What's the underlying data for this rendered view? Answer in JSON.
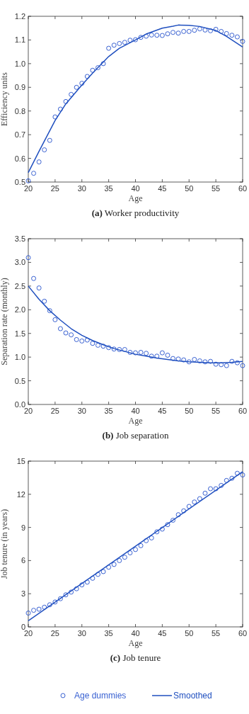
{
  "chart_data": [
    {
      "type": "scatter",
      "title": "(a) Worker productivity",
      "xlabel": "Age",
      "ylabel": "Efficiency units",
      "xlim": [
        20,
        60
      ],
      "xticks": [
        20,
        25,
        30,
        35,
        40,
        45,
        50,
        55,
        60
      ],
      "ylim": [
        0.5,
        1.2
      ],
      "yticks": [
        {
          "value": 0.5,
          "label": "0.5"
        },
        {
          "value": 0.6,
          "label": "0.6"
        },
        {
          "value": 0.7,
          "label": "0.7"
        },
        {
          "value": 0.8,
          "label": "0.8"
        },
        {
          "value": 0.9,
          "label": "0.9"
        },
        {
          "value": 1,
          "label": "1.0"
        },
        {
          "value": 1.1,
          "label": "1.1"
        },
        {
          "value": 1.2,
          "label": "1.2"
        }
      ],
      "grid": false,
      "series": [
        {
          "type": "scatter",
          "marker": "circle",
          "color": "#3a62d2",
          "x": [
            20,
            21,
            22,
            23,
            24,
            25,
            26,
            27,
            28,
            29,
            30,
            31,
            32,
            33,
            34,
            35,
            36,
            37,
            38,
            39,
            40,
            41,
            42,
            43,
            44,
            45,
            46,
            47,
            48,
            49,
            50,
            51,
            52,
            53,
            54,
            55,
            56,
            57,
            58,
            59,
            60
          ],
          "values": [
            0.505,
            0.537,
            0.585,
            0.636,
            0.676,
            0.775,
            0.808,
            0.84,
            0.87,
            0.9,
            0.917,
            0.946,
            0.972,
            0.983,
            1.0,
            1.065,
            1.078,
            1.085,
            1.09,
            1.099,
            1.101,
            1.111,
            1.116,
            1.121,
            1.12,
            1.119,
            1.126,
            1.132,
            1.129,
            1.136,
            1.136,
            1.141,
            1.147,
            1.142,
            1.139,
            1.145,
            1.136,
            1.127,
            1.12,
            1.113,
            1.094
          ]
        },
        {
          "type": "line",
          "marker": "none",
          "line_style": "solid",
          "color": "#1f4fbf",
          "x": [
            20,
            22,
            25,
            27,
            30,
            32,
            35,
            37,
            40,
            42,
            45,
            47,
            48,
            50,
            52,
            55,
            57,
            60
          ],
          "values": [
            0.54,
            0.63,
            0.76,
            0.83,
            0.91,
            0.96,
            1.03,
            1.065,
            1.1,
            1.125,
            1.15,
            1.158,
            1.163,
            1.162,
            1.157,
            1.14,
            1.115,
            1.07
          ]
        }
      ]
    },
    {
      "type": "scatter",
      "title": "(b) Job separation",
      "xlabel": "Age",
      "ylabel": "Separation rate (monthly)",
      "xlim": [
        20,
        60
      ],
      "xticks": [
        20,
        25,
        30,
        35,
        40,
        45,
        50,
        55,
        60
      ],
      "ylim": [
        0,
        3.5
      ],
      "yticks": [
        {
          "value": 0,
          "label": "0.0"
        },
        {
          "value": 0.5,
          "label": "0.5"
        },
        {
          "value": 1,
          "label": "1.0"
        },
        {
          "value": 1.5,
          "label": "1.5"
        },
        {
          "value": 2,
          "label": "2.0"
        },
        {
          "value": 2.5,
          "label": "2.5"
        },
        {
          "value": 3,
          "label": "3.0"
        },
        {
          "value": 3.5,
          "label": "3.5"
        }
      ],
      "grid": false,
      "series": [
        {
          "type": "scatter",
          "marker": "circle",
          "color": "#3a62d2",
          "x": [
            20,
            21,
            22,
            23,
            24,
            25,
            26,
            27,
            28,
            29,
            30,
            31,
            32,
            33,
            34,
            35,
            36,
            37,
            38,
            39,
            40,
            41,
            42,
            43,
            44,
            45,
            46,
            47,
            48,
            49,
            50,
            51,
            52,
            53,
            54,
            55,
            56,
            57,
            58,
            59,
            60
          ],
          "values": [
            3.1,
            2.66,
            2.46,
            2.18,
            1.98,
            1.79,
            1.6,
            1.51,
            1.47,
            1.37,
            1.34,
            1.36,
            1.29,
            1.25,
            1.23,
            1.2,
            1.17,
            1.16,
            1.16,
            1.1,
            1.09,
            1.1,
            1.08,
            1.02,
            1.02,
            1.09,
            1.04,
            0.97,
            0.96,
            0.94,
            0.9,
            0.95,
            0.92,
            0.9,
            0.91,
            0.85,
            0.84,
            0.82,
            0.91,
            0.88,
            0.82
          ]
        },
        {
          "type": "line",
          "marker": "none",
          "line_style": "solid",
          "color": "#1f4fbf",
          "x": [
            20,
            22,
            24,
            26,
            28,
            30,
            32,
            34,
            36,
            38,
            40,
            42,
            44,
            46,
            48,
            50,
            52,
            54,
            56,
            58,
            60
          ],
          "values": [
            2.5,
            2.22,
            1.98,
            1.78,
            1.6,
            1.46,
            1.35,
            1.26,
            1.18,
            1.12,
            1.06,
            1.02,
            0.98,
            0.95,
            0.92,
            0.9,
            0.89,
            0.88,
            0.88,
            0.89,
            0.91
          ]
        }
      ]
    },
    {
      "type": "scatter",
      "title": "(c) Job tenure",
      "xlabel": "Age",
      "ylabel": "Job tenure (in years)",
      "xlim": [
        20,
        60
      ],
      "xticks": [
        20,
        25,
        30,
        35,
        40,
        45,
        50,
        55,
        60
      ],
      "ylim": [
        0,
        15
      ],
      "yticks": [
        0,
        3,
        6,
        9,
        12,
        15
      ],
      "grid": false,
      "legend": "bottom",
      "series": [
        {
          "name": "Age dummies",
          "type": "scatter",
          "marker": "circle",
          "color": "#3a62d2",
          "x": [
            20,
            21,
            22,
            23,
            24,
            25,
            26,
            27,
            28,
            29,
            30,
            31,
            32,
            33,
            34,
            35,
            36,
            37,
            38,
            39,
            40,
            41,
            42,
            43,
            44,
            45,
            46,
            47,
            48,
            49,
            50,
            51,
            52,
            53,
            54,
            55,
            56,
            57,
            58,
            59,
            60
          ],
          "values": [
            1.25,
            1.5,
            1.6,
            1.78,
            2.0,
            2.25,
            2.55,
            2.9,
            3.15,
            3.45,
            3.8,
            4.05,
            4.4,
            4.75,
            5.0,
            5.4,
            5.65,
            6.0,
            6.3,
            6.7,
            7.0,
            7.35,
            7.8,
            8.05,
            8.6,
            8.85,
            9.25,
            9.65,
            10.15,
            10.5,
            10.9,
            11.3,
            11.6,
            12.1,
            12.5,
            12.5,
            12.8,
            13.25,
            13.45,
            13.9,
            13.75
          ]
        },
        {
          "name": "Smoothed",
          "type": "line",
          "marker": "none",
          "line_style": "solid",
          "color": "#1f4fbf",
          "x": [
            20,
            60
          ],
          "values": [
            0.55,
            14.05
          ]
        }
      ]
    }
  ]
}
